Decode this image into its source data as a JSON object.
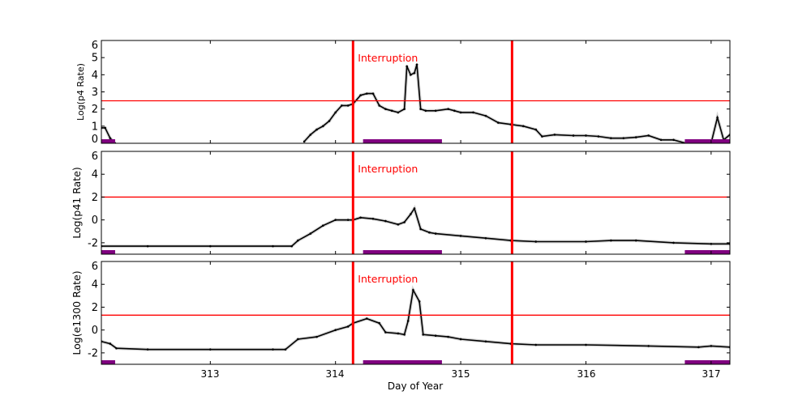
{
  "chart_data": {
    "type": "scatter",
    "xlabel": "Day of Year",
    "xlim": [
      312.13,
      317.15
    ],
    "xticks": [
      "313",
      "314",
      "315",
      "316",
      "317"
    ],
    "grid": false,
    "colors": {
      "data": "#000000",
      "threshold": "#ff0000",
      "interruption": "#ff0000",
      "bar": "#800080"
    },
    "interruption_lines": [
      314.14,
      315.41
    ],
    "interruption_label": "Interruption",
    "purple_intervals": [
      [
        312.13,
        312.24
      ],
      [
        314.22,
        314.85
      ],
      [
        316.79,
        317.15
      ]
    ],
    "panels": [
      {
        "ylabel": "Log(p4 Rate)",
        "ylim": [
          0,
          6
        ],
        "yticks": [
          "0",
          "1",
          "2",
          "3",
          "4",
          "5",
          "6"
        ],
        "threshold": 2.48,
        "x": [
          312.13,
          312.16,
          312.2,
          312.24,
          313.75,
          313.8,
          313.85,
          313.9,
          313.95,
          314.0,
          314.05,
          314.1,
          314.14,
          314.2,
          314.25,
          314.3,
          314.35,
          314.4,
          314.45,
          314.5,
          314.55,
          314.57,
          314.6,
          314.63,
          314.65,
          314.68,
          314.72,
          314.8,
          314.9,
          314.95,
          315.0,
          315.1,
          315.2,
          315.3,
          315.4,
          315.5,
          315.6,
          315.65,
          315.75,
          315.9,
          316.0,
          316.1,
          316.2,
          316.3,
          316.4,
          316.5,
          316.6,
          316.7,
          316.8,
          316.9,
          317.0,
          317.05,
          317.1,
          317.15
        ],
        "y": [
          0.9,
          0.9,
          0.3,
          0.0,
          0.1,
          0.5,
          0.8,
          1.0,
          1.3,
          1.8,
          2.2,
          2.2,
          2.3,
          2.8,
          2.9,
          2.9,
          2.2,
          2.0,
          1.9,
          1.8,
          2.0,
          4.5,
          4.0,
          4.1,
          4.6,
          2.0,
          1.9,
          1.9,
          2.0,
          1.9,
          1.8,
          1.8,
          1.6,
          1.2,
          1.1,
          1.0,
          0.8,
          0.4,
          0.5,
          0.45,
          0.45,
          0.4,
          0.3,
          0.3,
          0.35,
          0.45,
          0.2,
          0.2,
          0.0,
          0.0,
          0.0,
          1.5,
          0.2,
          0.5
        ]
      },
      {
        "ylabel": "Log(p41 Rate)",
        "ylim": [
          -3,
          6
        ],
        "yticks": [
          "-2",
          "0",
          "2",
          "4",
          "6"
        ],
        "threshold": 2,
        "x": [
          312.13,
          312.5,
          313.0,
          313.5,
          313.65,
          313.7,
          313.8,
          313.9,
          314.0,
          314.1,
          314.14,
          314.2,
          314.3,
          314.4,
          314.5,
          314.55,
          314.6,
          314.63,
          314.68,
          314.75,
          314.8,
          315.0,
          315.2,
          315.4,
          315.6,
          316.0,
          316.2,
          316.4,
          316.7,
          317.0,
          317.15
        ],
        "y": [
          -2.3,
          -2.3,
          -2.3,
          -2.3,
          -2.3,
          -1.8,
          -1.2,
          -0.5,
          0.0,
          0.0,
          0.0,
          0.2,
          0.1,
          -0.1,
          -0.4,
          -0.2,
          0.5,
          1.0,
          -0.8,
          -1.1,
          -1.2,
          -1.4,
          -1.6,
          -1.8,
          -1.9,
          -1.9,
          -1.8,
          -1.8,
          -2.0,
          -2.1,
          -2.1
        ]
      },
      {
        "ylabel": "Log(e1300 Rate)",
        "ylim": [
          -3,
          6
        ],
        "yticks": [
          "-2",
          "0",
          "2",
          "4",
          "6"
        ],
        "threshold": 1.3,
        "x": [
          312.13,
          312.2,
          312.25,
          312.5,
          313.0,
          313.5,
          313.6,
          313.7,
          313.85,
          314.0,
          314.1,
          314.14,
          314.25,
          314.35,
          314.4,
          314.5,
          314.55,
          314.58,
          314.62,
          314.67,
          314.7,
          314.8,
          314.9,
          315.0,
          315.2,
          315.4,
          315.6,
          316.0,
          316.5,
          316.9,
          317.0,
          317.15
        ],
        "y": [
          -1.0,
          -1.2,
          -1.6,
          -1.7,
          -1.7,
          -1.7,
          -1.7,
          -0.8,
          -0.6,
          0.0,
          0.3,
          0.6,
          1.0,
          0.6,
          -0.2,
          -0.3,
          -0.4,
          0.8,
          3.5,
          2.5,
          -0.4,
          -0.5,
          -0.6,
          -0.8,
          -1.0,
          -1.2,
          -1.3,
          -1.3,
          -1.4,
          -1.5,
          -1.4,
          -1.5
        ]
      }
    ]
  }
}
